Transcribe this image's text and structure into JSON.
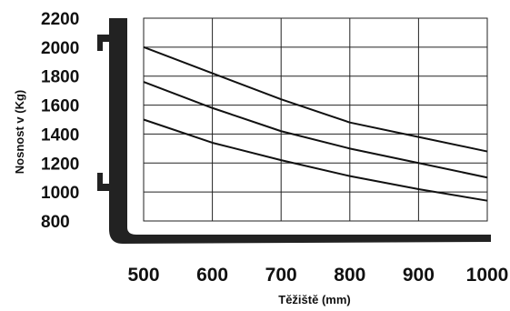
{
  "chart_data": {
    "type": "line",
    "xlabel": "Těžiště (mm)",
    "ylabel": "Nosnost v (Kg)",
    "x_ticks": [
      500,
      600,
      700,
      800,
      900,
      1000
    ],
    "y_ticks": [
      800,
      1000,
      1200,
      1400,
      1600,
      1800,
      2000,
      2200
    ],
    "xlim": [
      500,
      1000
    ],
    "ylim": [
      800,
      2200
    ],
    "grid": true,
    "series": [
      {
        "x": [
          500,
          600,
          700,
          800,
          900,
          1000
        ],
        "values": [
          2000,
          1820,
          1640,
          1480,
          1380,
          1280
        ]
      },
      {
        "x": [
          500,
          600,
          700,
          800,
          900,
          1000
        ],
        "values": [
          1760,
          1580,
          1420,
          1300,
          1200,
          1100
        ]
      },
      {
        "x": [
          500,
          600,
          700,
          800,
          900,
          1000
        ],
        "values": [
          1500,
          1340,
          1220,
          1110,
          1020,
          940
        ]
      }
    ]
  }
}
